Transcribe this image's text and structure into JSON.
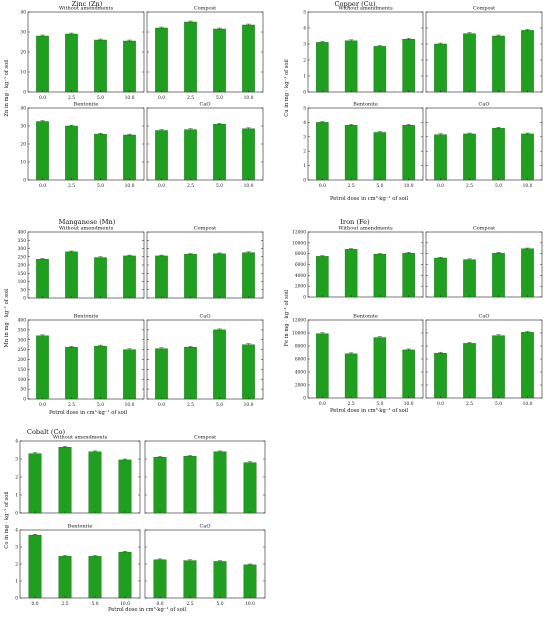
{
  "chart_data": [
    {
      "type": "bar",
      "title": "Zinc (Zn)",
      "ylabel": "Zn in mg · kg⁻¹ of soil",
      "xlabel": "",
      "ylim": [
        0,
        40
      ],
      "yticks": [
        0,
        10,
        20,
        30,
        40
      ],
      "categories": [
        "0.0",
        "2.5",
        "5.0",
        "10.0"
      ],
      "series": [
        {
          "name": "Without amendments",
          "values": [
            28,
            29,
            26,
            25.5
          ]
        },
        {
          "name": "Compost",
          "values": [
            32,
            35,
            31.5,
            33.5
          ]
        },
        {
          "name": "Bentonite",
          "values": [
            32.5,
            30,
            25.5,
            25
          ]
        },
        {
          "name": "CaO",
          "values": [
            27.5,
            28,
            31,
            28.5
          ]
        }
      ]
    },
    {
      "type": "bar",
      "title": "Copper (Cu)",
      "ylabel": "Cu in mg · kg⁻¹ of soil",
      "xlabel": "Petrol dose in cm³·kg⁻¹ of soil",
      "ylim": [
        0,
        5
      ],
      "yticks": [
        0,
        1,
        2,
        3,
        4,
        5
      ],
      "categories": [
        "0.0",
        "2.5",
        "5.0",
        "10.0"
      ],
      "series": [
        {
          "name": "Without amendments",
          "values": [
            3.1,
            3.2,
            2.85,
            3.3
          ]
        },
        {
          "name": "Compost",
          "values": [
            3.0,
            3.65,
            3.5,
            3.85
          ]
        },
        {
          "name": "Bentonite",
          "values": [
            4.0,
            3.8,
            3.3,
            3.8
          ]
        },
        {
          "name": "CaO",
          "values": [
            3.15,
            3.2,
            3.6,
            3.2
          ]
        }
      ]
    },
    {
      "type": "bar",
      "title": "Manganese (Mn)",
      "ylabel": "Mn in mg · kg⁻¹ of soil",
      "xlabel": "Petrol dose in cm³·kg⁻¹ of soil",
      "ylim": [
        0,
        400
      ],
      "yticks": [
        0,
        50,
        100,
        150,
        200,
        250,
        300,
        350,
        400
      ],
      "categories": [
        "0.0",
        "2.5",
        "5.0",
        "10.0"
      ],
      "series": [
        {
          "name": "Without amendments",
          "values": [
            235,
            280,
            245,
            255
          ]
        },
        {
          "name": "Compost",
          "values": [
            255,
            265,
            268,
            275
          ]
        },
        {
          "name": "Bentonite",
          "values": [
            320,
            262,
            268,
            250
          ]
        },
        {
          "name": "CaO",
          "values": [
            255,
            262,
            350,
            275
          ]
        }
      ]
    },
    {
      "type": "bar",
      "title": "Iron (Fe)",
      "ylabel": "Fe in mg · kg⁻¹ of soil",
      "xlabel": "Petrol dose in cm³·kg⁻¹ of soil",
      "ylim": [
        0,
        12000
      ],
      "yticks": [
        0,
        2000,
        4000,
        6000,
        8000,
        10000,
        12000
      ],
      "categories": [
        "0.0",
        "2.5",
        "5.0",
        "10.0"
      ],
      "series": [
        {
          "name": "Without amendments",
          "values": [
            7500,
            8800,
            7900,
            8100
          ]
        },
        {
          "name": "Compost",
          "values": [
            7200,
            6900,
            8100,
            8900
          ]
        },
        {
          "name": "Bentonite",
          "values": [
            9900,
            6800,
            9300,
            7400
          ]
        },
        {
          "name": "CaO",
          "values": [
            6900,
            8400,
            9600,
            10100
          ]
        }
      ]
    },
    {
      "type": "bar",
      "title": "Cobalt (Co)",
      "ylabel": "Co in mg · kg⁻¹ of soil",
      "xlabel": "Petrol dose in cm³·kg⁻¹ of soil",
      "ylim": [
        0,
        4
      ],
      "yticks": [
        0,
        1,
        2,
        3,
        4
      ],
      "categories": [
        "0.0",
        "2.5",
        "5.0",
        "10.0"
      ],
      "series": [
        {
          "name": "Without amendments",
          "values": [
            3.3,
            3.65,
            3.4,
            2.95
          ]
        },
        {
          "name": "Compost",
          "values": [
            3.1,
            3.15,
            3.4,
            2.8
          ]
        },
        {
          "name": "Bentonite",
          "values": [
            3.7,
            2.45,
            2.45,
            2.7
          ]
        },
        {
          "name": "CaO",
          "values": [
            2.25,
            2.2,
            2.15,
            1.95
          ]
        }
      ]
    }
  ],
  "style": {
    "bar_color": "#1f9e1f",
    "bar_edge": "#0e6b0e",
    "error_color": "#333333",
    "axis_color": "#222222"
  }
}
